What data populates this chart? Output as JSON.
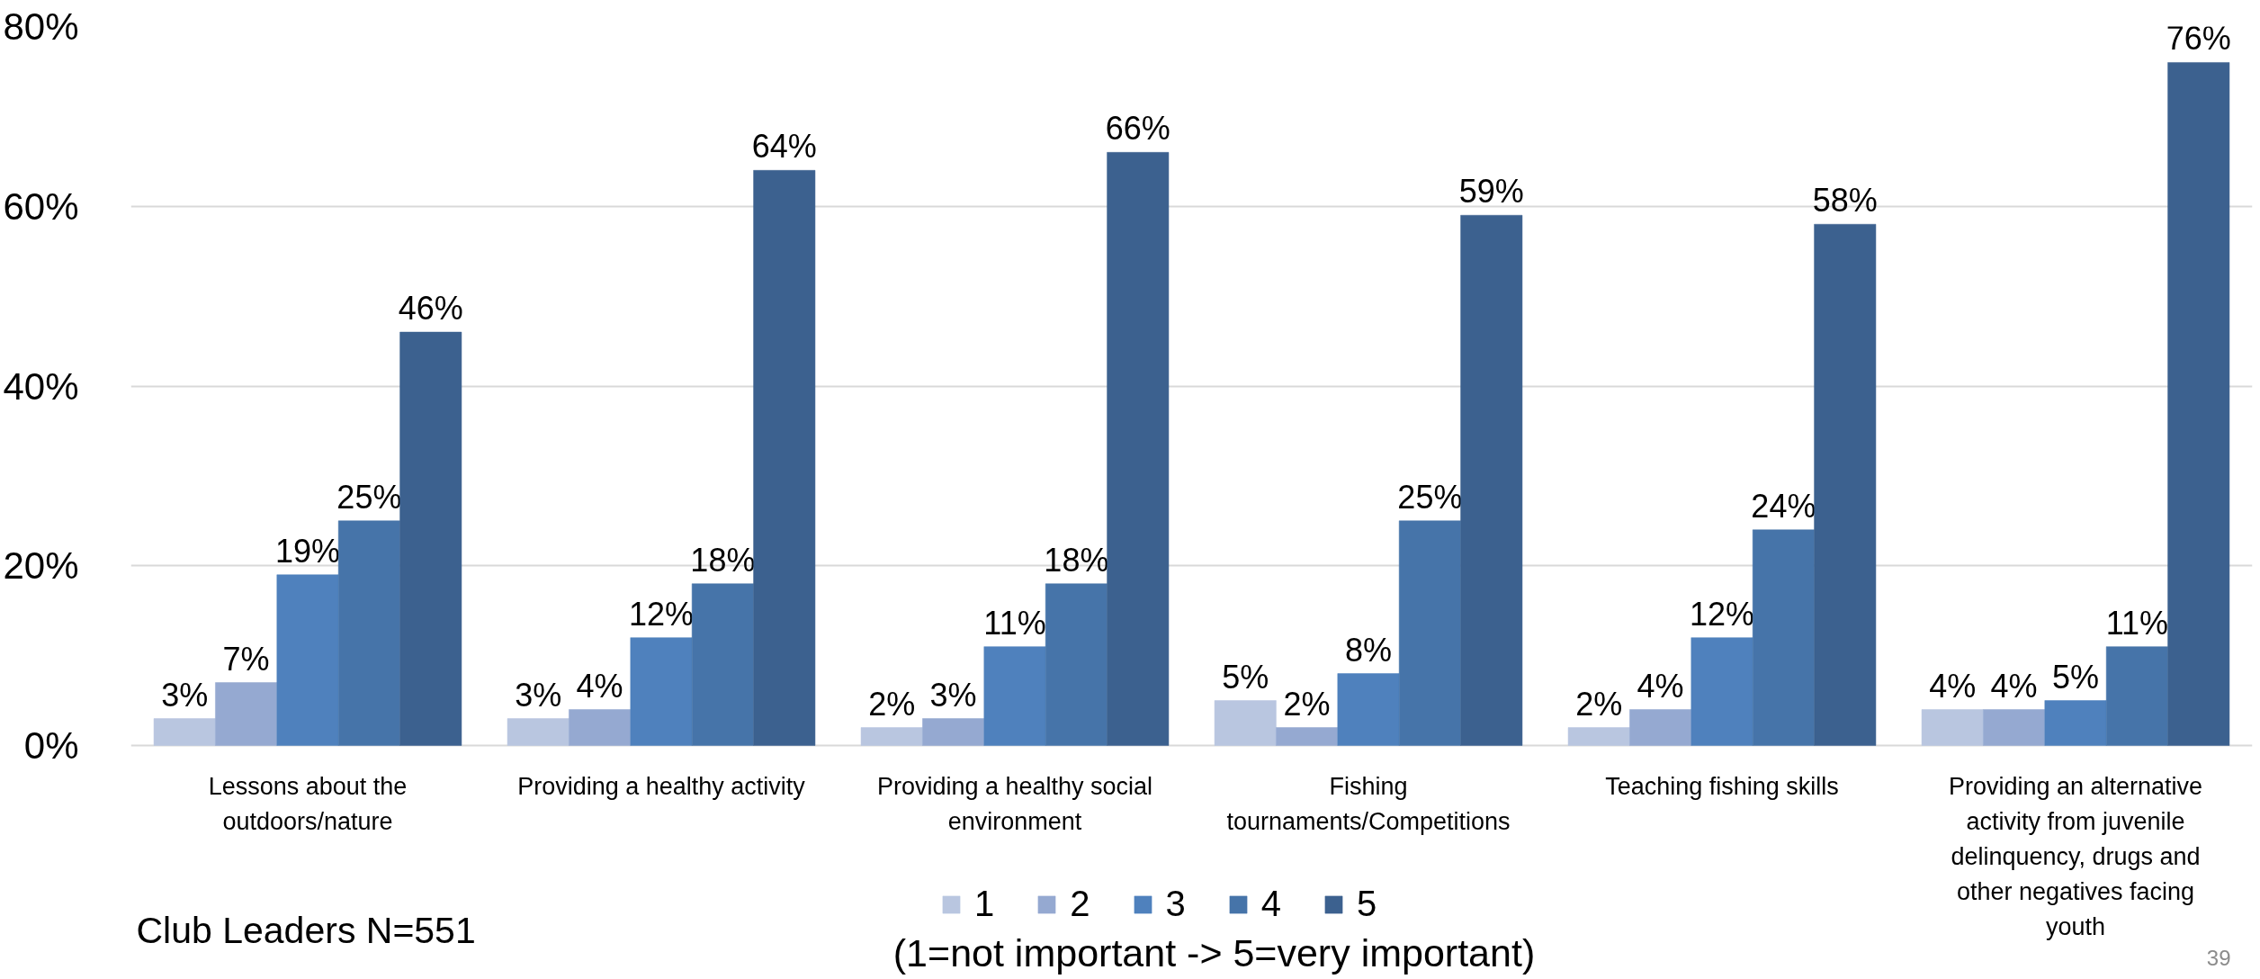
{
  "chart_data": {
    "type": "bar",
    "categories": [
      "Lessons about the\noutdoors/nature",
      "Providing a healthy activity",
      "Providing a healthy social\nenvironment",
      "Fishing\ntournaments/Competitions",
      "Teaching fishing skills",
      "Providing an alternative\nactivity from juvenile\ndelinquency, drugs and\nother negatives facing\nyouth"
    ],
    "series": [
      {
        "name": "1",
        "color": "#b9c6e0",
        "values": [
          3,
          3,
          2,
          5,
          2,
          4
        ],
        "value_labels": [
          "3%",
          "3%",
          "2%",
          "5%",
          "2%",
          "4%"
        ]
      },
      {
        "name": "2",
        "color": "#95a9d1",
        "values": [
          7,
          4,
          3,
          2,
          4,
          4
        ],
        "value_labels": [
          "7%",
          "4%",
          "3%",
          "2%",
          "4%",
          "4%"
        ]
      },
      {
        "name": "3",
        "color": "#4f81bd",
        "values": [
          19,
          12,
          11,
          8,
          12,
          5
        ],
        "value_labels": [
          "19%",
          "12%",
          "11%",
          "8%",
          "12%",
          "5%"
        ]
      },
      {
        "name": "4",
        "color": "#4674a9",
        "values": [
          25,
          18,
          18,
          25,
          24,
          11
        ],
        "value_labels": [
          "25%",
          "18%",
          "18%",
          "25%",
          "24%",
          "11%"
        ]
      },
      {
        "name": "5",
        "color": "#3c618f",
        "values": [
          46,
          64,
          66,
          59,
          58,
          76
        ],
        "value_labels": [
          "46%",
          "64%",
          "66%",
          "59%",
          "58%",
          "76%"
        ]
      }
    ],
    "ylim": [
      0,
      80
    ],
    "yticks": [
      {
        "value": 0,
        "label": "0%"
      },
      {
        "value": 20,
        "label": "20%"
      },
      {
        "value": 40,
        "label": "40%"
      },
      {
        "value": 60,
        "label": "60%"
      },
      {
        "value": 80,
        "label": "80%"
      }
    ],
    "grid": "y",
    "legend": "bottom",
    "annotations": [
      "Club Leaders N=551",
      "(1=not important -> 5=very important)",
      "39"
    ]
  }
}
